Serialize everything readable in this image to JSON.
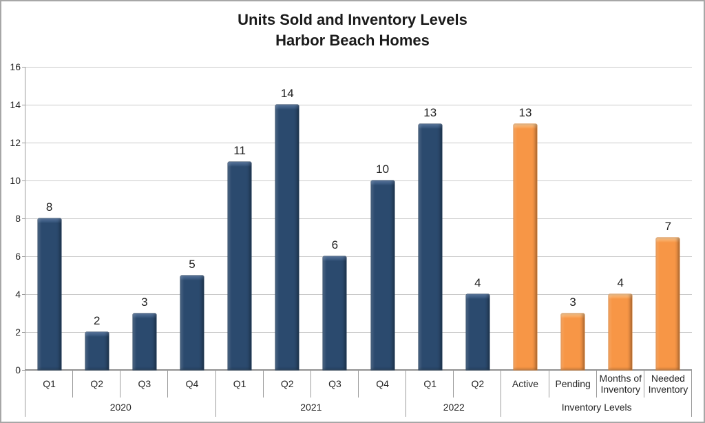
{
  "chart_data": {
    "type": "bar",
    "title": "Units Sold and Inventory Levels",
    "subtitle": "Harbor Beach Homes",
    "xlabel": "",
    "ylabel": "",
    "ylim": [
      0,
      16
    ],
    "ytick_step": 2,
    "grid": true,
    "legend": "none",
    "data_labels": true,
    "categories": [
      "Q1",
      "Q2",
      "Q3",
      "Q4",
      "Q1",
      "Q2",
      "Q3",
      "Q4",
      "Q1",
      "Q2",
      "Active",
      "Pending",
      "Months of Inventory",
      "Needed Inventory"
    ],
    "values": [
      8,
      2,
      3,
      5,
      11,
      14,
      6,
      10,
      13,
      4,
      13,
      3,
      4,
      7
    ],
    "groups": [
      {
        "label": "2020",
        "count": 4,
        "color": "#2b4a6e",
        "color_light": "#5a7aa4",
        "color_edge": "#1f3a57"
      },
      {
        "label": "2021",
        "count": 4,
        "color": "#2b4a6e",
        "color_light": "#5a7aa4",
        "color_edge": "#1f3a57"
      },
      {
        "label": "2022",
        "count": 2,
        "color": "#2b4a6e",
        "color_light": "#5a7aa4",
        "color_edge": "#1f3a57"
      },
      {
        "label": "Inventory Levels",
        "count": 4,
        "color": "#f79646",
        "color_light": "#fdc98f",
        "color_edge": "#d97b2a"
      }
    ]
  },
  "colors": {
    "grid": "#c9c9c9",
    "axis": "#9a9a9a",
    "text": "#262626",
    "value_label": "#202020",
    "border": "#a7a7a7",
    "background": "#ffffff"
  }
}
